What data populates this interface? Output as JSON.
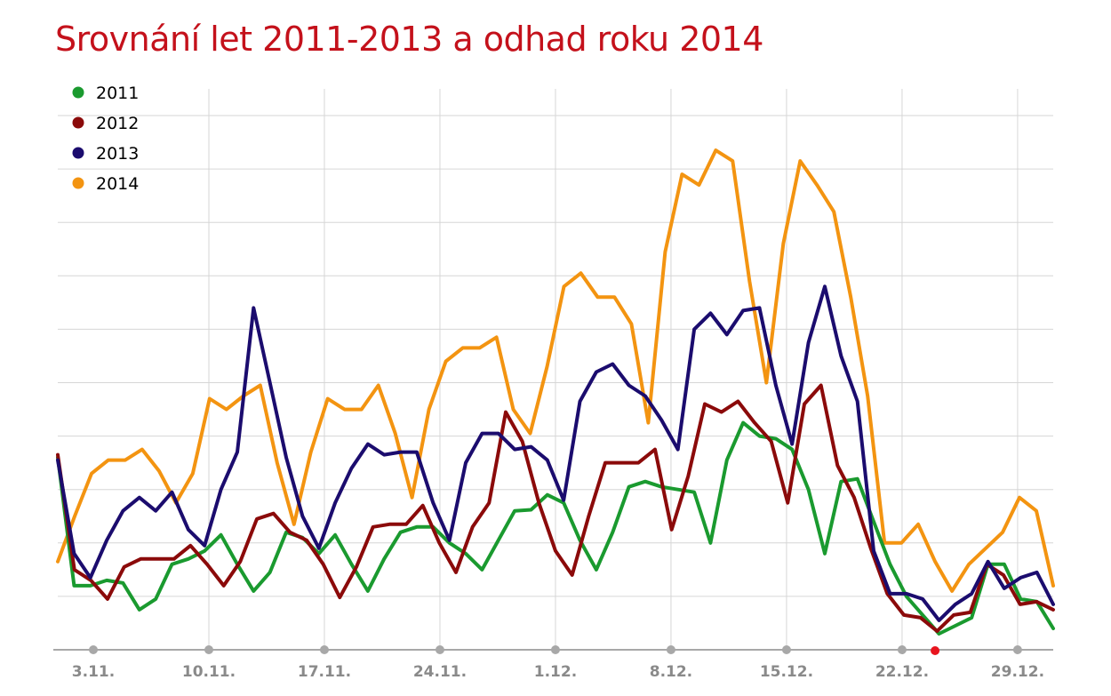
{
  "chart_data": {
    "type": "line",
    "title": "Srovnání let 2011-2013 a odhad roku 2014",
    "xlabel": "",
    "ylabel": "",
    "x_start": "1.11.",
    "x_ticks": [
      "3.11.",
      "10.11.",
      "17.11.",
      "24.11.",
      "1.12.",
      "8.12.",
      "15.12.",
      "22.12.",
      "29.12."
    ],
    "highlight_tick": "24.12.",
    "grid": true,
    "legend_position": "top-left",
    "ylim": [
      0,
      10
    ],
    "series": [
      {
        "name": "2011",
        "color": "#1a9a2f",
        "values": [
          3.6,
          1.2,
          1.2,
          1.3,
          1.25,
          0.75,
          0.95,
          1.6,
          1.7,
          1.85,
          2.15,
          1.6,
          1.1,
          1.45,
          2.2,
          2.1,
          1.8,
          2.15,
          1.6,
          1.1,
          1.7,
          2.2,
          2.3,
          2.3,
          2.0,
          1.8,
          1.5,
          2.05,
          2.6,
          2.62,
          2.9,
          2.75,
          2.05,
          1.5,
          2.2,
          3.05,
          3.15,
          3.05,
          3.0,
          2.95,
          2.0,
          3.55,
          4.25,
          4.0,
          3.95,
          3.75,
          3.0,
          1.8,
          3.15,
          3.2,
          2.4,
          1.6,
          1.0,
          0.65,
          0.3,
          0.45,
          0.6,
          1.6,
          1.6,
          0.95,
          0.9,
          0.4
        ]
      },
      {
        "name": "2012",
        "color": "#8b0a0a",
        "values": [
          3.65,
          1.5,
          1.3,
          0.95,
          1.55,
          1.7,
          1.7,
          1.7,
          1.95,
          1.6,
          1.2,
          1.65,
          2.45,
          2.55,
          2.2,
          2.05,
          1.6,
          0.98,
          1.55,
          2.3,
          2.35,
          2.35,
          2.7,
          2.0,
          1.45,
          2.3,
          2.75,
          4.45,
          3.9,
          2.75,
          1.85,
          1.4,
          2.5,
          3.5,
          3.5,
          3.5,
          3.75,
          2.25,
          3.25,
          4.6,
          4.45,
          4.65,
          4.25,
          3.9,
          2.75,
          4.6,
          4.95,
          3.45,
          2.85,
          1.9,
          1.05,
          0.65,
          0.6,
          0.35,
          0.65,
          0.7,
          1.6,
          1.4,
          0.85,
          0.9,
          0.75
        ]
      },
      {
        "name": "2013",
        "color": "#1b0c6e",
        "values": [
          3.55,
          1.8,
          1.35,
          2.05,
          2.6,
          2.85,
          2.6,
          2.95,
          2.25,
          1.95,
          3.0,
          3.7,
          6.4,
          5.0,
          3.6,
          2.5,
          1.9,
          2.75,
          3.4,
          3.85,
          3.65,
          3.7,
          3.7,
          2.75,
          2.05,
          3.5,
          4.05,
          4.05,
          3.75,
          3.8,
          3.55,
          2.8,
          4.65,
          5.2,
          5.35,
          4.95,
          4.75,
          4.3,
          3.75,
          6.0,
          6.3,
          5.9,
          6.35,
          6.4,
          4.95,
          3.85,
          5.75,
          6.8,
          5.5,
          4.65,
          1.85,
          1.05,
          1.05,
          0.95,
          0.55,
          0.85,
          1.05,
          1.65,
          1.15,
          1.35,
          1.45,
          0.85
        ]
      },
      {
        "name": "2014",
        "color": "#f39411",
        "values": [
          1.65,
          2.5,
          3.3,
          3.55,
          3.55,
          3.75,
          3.35,
          2.75,
          3.3,
          4.7,
          4.5,
          4.75,
          4.95,
          3.5,
          2.35,
          3.7,
          4.7,
          4.5,
          4.5,
          4.95,
          4.05,
          2.85,
          4.5,
          5.4,
          5.65,
          5.65,
          5.85,
          4.5,
          4.05,
          5.3,
          6.8,
          7.05,
          6.6,
          6.6,
          6.1,
          4.25,
          7.45,
          8.9,
          8.7,
          9.35,
          9.15,
          6.9,
          5.0,
          7.6,
          9.15,
          8.7,
          8.2,
          6.6,
          4.75,
          2.0,
          2.0,
          2.35,
          1.65,
          1.1,
          1.6,
          1.9,
          2.2,
          2.85,
          2.6,
          1.2
        ]
      }
    ]
  }
}
